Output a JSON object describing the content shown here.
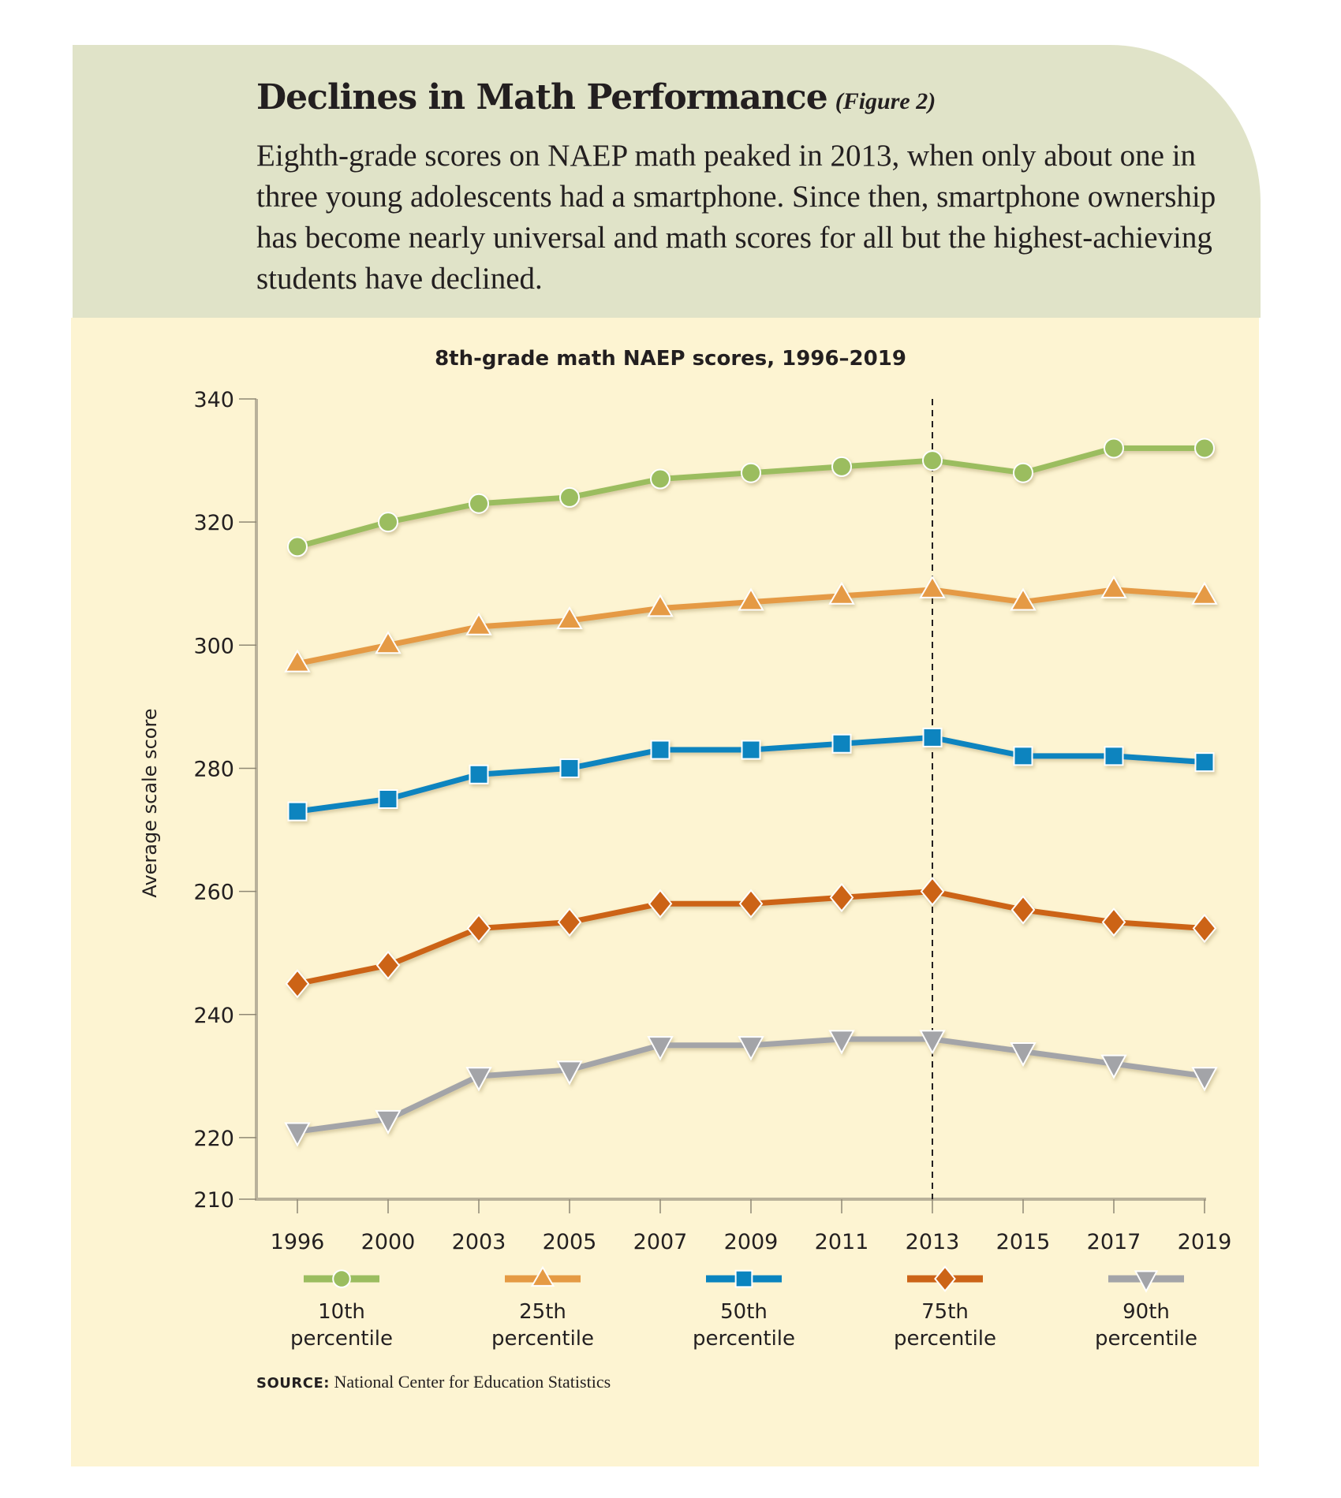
{
  "header": {
    "title": "Declines in Math Performance",
    "figure_tag": "(Figure 2)",
    "description": "Eighth-grade scores on NAEP math peaked in 2013, when only about one in three young adolescents had a smartphone. Since then, smartphone ownership has become nearly universal and math scores for all but the highest-achieving students have declined."
  },
  "colors": {
    "header_bg": "#e0e3c8",
    "chart_bg": "#fdf4d2",
    "axis": "#b9b19a",
    "reference_line": "#231f20"
  },
  "chart_data": {
    "type": "line",
    "title": "8th-grade math NAEP scores, 1996–2019",
    "xlabel": "",
    "ylabel": "Average scale score",
    "x": [
      "1996",
      "2000",
      "2003",
      "2005",
      "2007",
      "2009",
      "2011",
      "2013",
      "2015",
      "2017",
      "2019"
    ],
    "ylim": [
      210,
      340
    ],
    "yticks": [
      210,
      220,
      240,
      260,
      280,
      300,
      320,
      340
    ],
    "grid": false,
    "reference_line": {
      "x": "2013",
      "style": "dashed"
    },
    "legend_position": "bottom",
    "series": [
      {
        "name": "10th percentile",
        "label_line1": "10th",
        "label_line2": "percentile",
        "marker": "circle",
        "color": "#9bbd5f",
        "values": [
          316,
          320,
          323,
          324,
          327,
          328,
          329,
          330,
          328,
          332,
          332
        ]
      },
      {
        "name": "25th percentile",
        "label_line1": "25th",
        "label_line2": "percentile",
        "marker": "triangle-up",
        "color": "#e59a44",
        "values": [
          297,
          300,
          303,
          304,
          306,
          307,
          308,
          309,
          307,
          309,
          308
        ]
      },
      {
        "name": "50th percentile",
        "label_line1": "50th",
        "label_line2": "percentile",
        "marker": "square",
        "color": "#0a84bf",
        "values": [
          273,
          275,
          279,
          280,
          283,
          283,
          284,
          285,
          282,
          282,
          281
        ]
      },
      {
        "name": "75th percentile",
        "label_line1": "75th",
        "label_line2": "percentile",
        "marker": "diamond",
        "color": "#cc6418",
        "values": [
          245,
          248,
          254,
          255,
          258,
          258,
          259,
          260,
          257,
          255,
          254
        ]
      },
      {
        "name": "90th percentile",
        "label_line1": "90th",
        "label_line2": "percentile",
        "marker": "triangle-down",
        "color": "#a3a4a8",
        "values": [
          221,
          223,
          230,
          231,
          235,
          235,
          236,
          236,
          234,
          232,
          230
        ]
      }
    ]
  },
  "source": {
    "label": "SOURCE:",
    "text": "National Center for Education Statistics"
  }
}
